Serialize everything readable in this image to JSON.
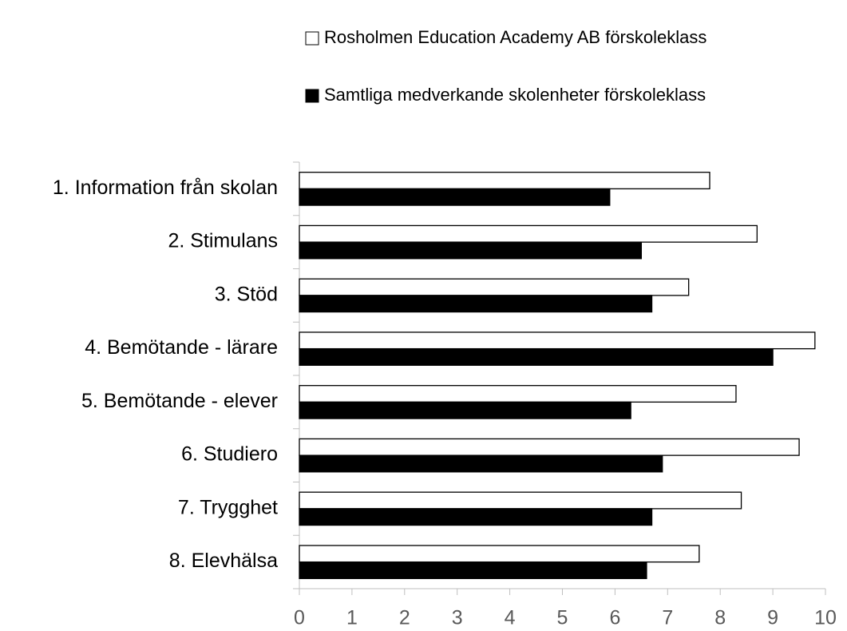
{
  "chart_data": {
    "type": "bar",
    "orientation": "horizontal",
    "categories": [
      "1. Information från skolan",
      "2. Stimulans",
      "3. Stöd",
      "4. Bemötande - lärare",
      "5. Bemötande - elever",
      "6. Studiero",
      "7. Trygghet",
      "8. Elevhälsa"
    ],
    "series": [
      {
        "name": "Rosholmen Education Academy AB förskoleklass",
        "color": "#ffffff",
        "values": [
          7.8,
          8.7,
          7.4,
          9.8,
          8.3,
          9.5,
          8.4,
          7.6
        ]
      },
      {
        "name": "Samtliga medverkande skolenheter förskoleklass",
        "color": "#000000",
        "values": [
          5.9,
          6.5,
          6.7,
          9.0,
          6.3,
          6.9,
          6.7,
          6.6
        ]
      }
    ],
    "xlim": [
      0,
      10
    ],
    "xticks": [
      0,
      1,
      2,
      3,
      4,
      5,
      6,
      7,
      8,
      9,
      10
    ],
    "grid": false,
    "legend": "top"
  }
}
